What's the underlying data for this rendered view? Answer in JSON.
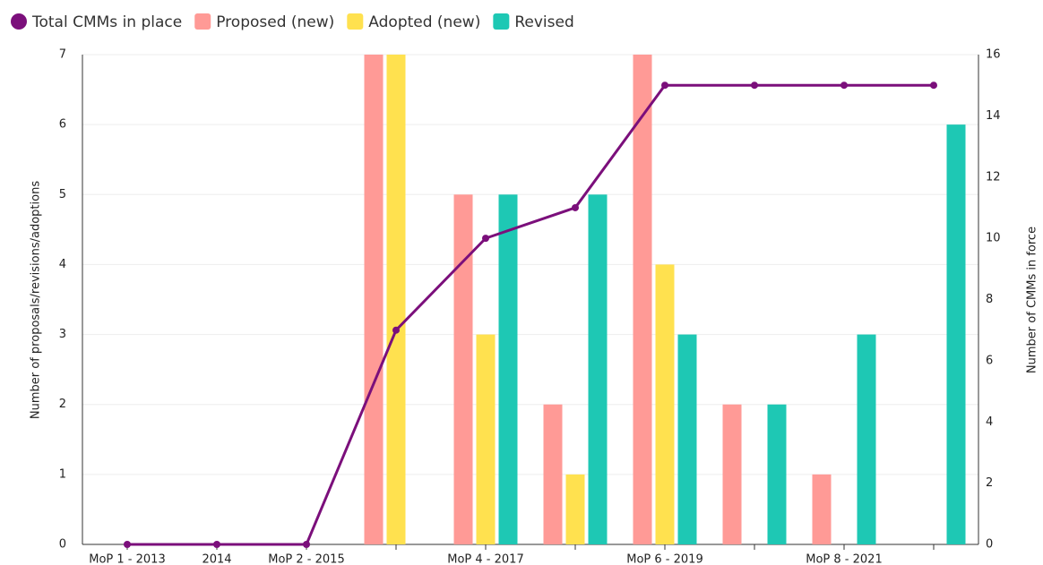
{
  "chart_data": {
    "type": "bar-line",
    "y_label": "Number of proposals/revisions/adoptions",
    "y2_label": "Number of CMMs in force",
    "categories": [
      "MoP 1 - 2013",
      "2014",
      "MoP 2 - 2015",
      null,
      "MoP 4 - 2017",
      null,
      "MoP 6 - 2019",
      null,
      "MoP 8 - 2021",
      null
    ],
    "series": [
      {
        "name": "Total CMMs in place",
        "color": "#7b0f7b",
        "kind": "line",
        "axis": "y2",
        "values": [
          0,
          0,
          0,
          7,
          10,
          11,
          15,
          15,
          15,
          15
        ]
      },
      {
        "name": "Proposed (new)",
        "color": "#ff9a96",
        "kind": "bar",
        "values": [
          0,
          0,
          0,
          7,
          5,
          2,
          7,
          2,
          1,
          0
        ]
      },
      {
        "name": "Adopted (new)",
        "color": "#ffe14f",
        "kind": "bar",
        "values": [
          0,
          0,
          0,
          7,
          3,
          1,
          4,
          0,
          0,
          0
        ]
      },
      {
        "name": "Revised",
        "color": "#1ec8b4",
        "kind": "bar",
        "values": [
          0,
          0,
          0,
          0,
          5,
          5,
          3,
          2,
          3,
          6
        ]
      }
    ],
    "ylim": [
      0,
      7
    ],
    "yticks": [
      0,
      1,
      2,
      3,
      4,
      5,
      6,
      7
    ],
    "y2lim": [
      0,
      16
    ],
    "y2ticks": [
      0,
      2,
      4,
      6,
      8,
      10,
      12,
      14,
      16
    ],
    "grid": true,
    "legend": "top"
  }
}
